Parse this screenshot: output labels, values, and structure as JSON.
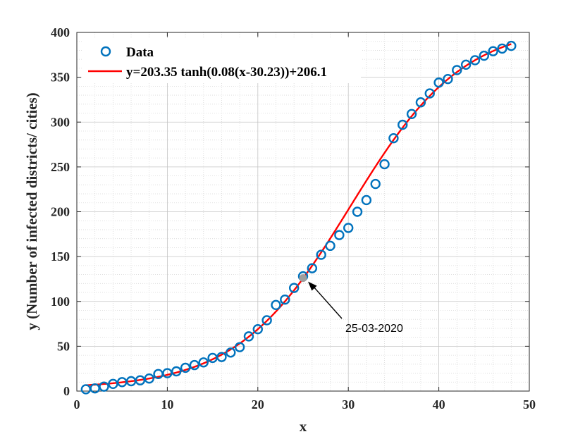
{
  "chart_data": {
    "type": "scatter",
    "title": "",
    "xlabel": "x",
    "ylabel": "y (Number of infected districts/ cities)",
    "xlim": [
      0,
      50
    ],
    "ylim": [
      0,
      400
    ],
    "xticks": [
      0,
      10,
      20,
      30,
      40,
      50
    ],
    "yticks": [
      0,
      50,
      100,
      150,
      200,
      250,
      300,
      350,
      400
    ],
    "grid": true,
    "legend_position": "top-left",
    "series": [
      {
        "name": "Data",
        "kind": "markers",
        "marker": "circle-open",
        "color": "#0072BD",
        "x": [
          1,
          2,
          3,
          4,
          5,
          6,
          7,
          8,
          9,
          10,
          11,
          12,
          13,
          14,
          15,
          16,
          17,
          18,
          19,
          20,
          21,
          22,
          23,
          24,
          25,
          26,
          27,
          28,
          29,
          30,
          31,
          32,
          33,
          34,
          35,
          36,
          37,
          38,
          39,
          40,
          41,
          42,
          43,
          44,
          45,
          46,
          47,
          48
        ],
        "y": [
          2,
          3,
          5,
          8,
          10,
          11,
          12,
          14,
          19,
          20,
          22,
          26,
          29,
          32,
          37,
          38,
          43,
          49,
          61,
          69,
          79,
          96,
          102,
          115,
          128,
          137,
          152,
          162,
          174,
          182,
          200,
          213,
          231,
          253,
          282,
          297,
          309,
          322,
          332,
          344,
          348,
          358,
          364,
          369,
          374,
          379,
          382,
          385
        ]
      },
      {
        "name": "y=203.35 tanh(0.08(x-30.23))+206.1",
        "kind": "line",
        "color": "#FF0000",
        "a": 203.35,
        "b": 0.08,
        "c": 30.23,
        "d": 206.1,
        "x_range": [
          1,
          48
        ]
      }
    ],
    "annotations": [
      {
        "text": "25-03-2020",
        "point_x": 25,
        "point_y": 126,
        "point_color": "#9E9E9E",
        "arrow_color": "#000000"
      }
    ]
  }
}
